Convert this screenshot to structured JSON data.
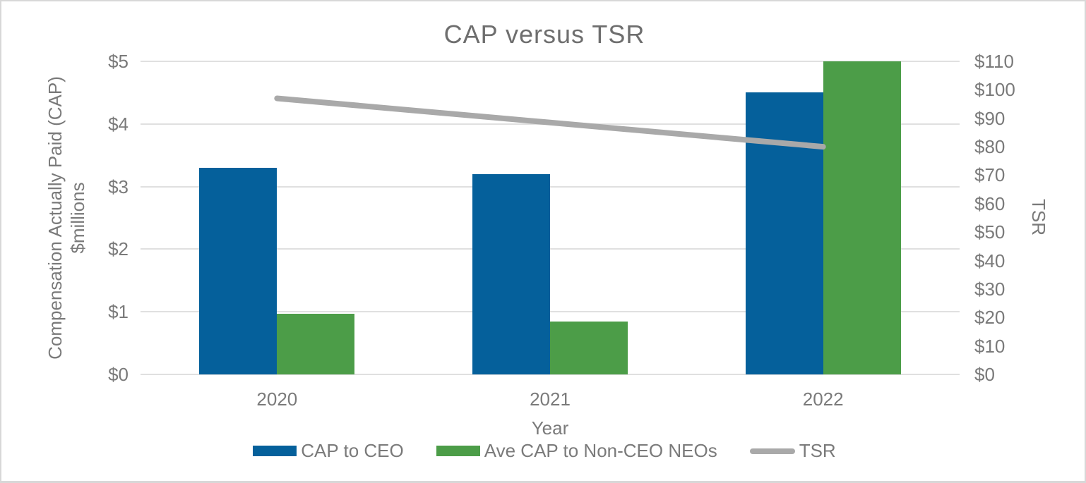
{
  "chart_data": {
    "type": "bar",
    "title": "CAP versus TSR",
    "categories": [
      "2020",
      "2021",
      "2022"
    ],
    "series": [
      {
        "name": "CAP to CEO",
        "type": "bar",
        "axis": "left",
        "color": "#05609b",
        "values": [
          3.3,
          3.2,
          4.5
        ]
      },
      {
        "name": "Ave CAP to Non-CEO NEOs",
        "type": "bar",
        "axis": "left",
        "color": "#4c9d48",
        "values": [
          0.97,
          0.84,
          5.0
        ]
      },
      {
        "name": "TSR",
        "type": "line",
        "axis": "right",
        "color": "#a9a9a9",
        "values": [
          97,
          88.5,
          80
        ]
      }
    ],
    "left_axis": {
      "title_line1": "Compensation Actually Paid (CAP)",
      "title_line2": "$millions",
      "min": 0,
      "max": 5,
      "tick_step": 1,
      "tick_labels": [
        "$0",
        "$1",
        "$2",
        "$3",
        "$4",
        "$5"
      ]
    },
    "right_axis": {
      "title": "TSR",
      "min": 0,
      "max": 110,
      "tick_step": 10,
      "tick_labels": [
        "$0",
        "$10",
        "$20",
        "$30",
        "$40",
        "$50",
        "$60",
        "$70",
        "$80",
        "$90",
        "$100",
        "$110"
      ]
    },
    "x_axis": {
      "title": "Year"
    },
    "legend_position": "bottom",
    "grid": true,
    "colors": {
      "grid": "#e0e0e0",
      "text": "#7a7a7a",
      "title_text": "#6e6e6e",
      "frame_border": "#d8d8d8"
    }
  }
}
